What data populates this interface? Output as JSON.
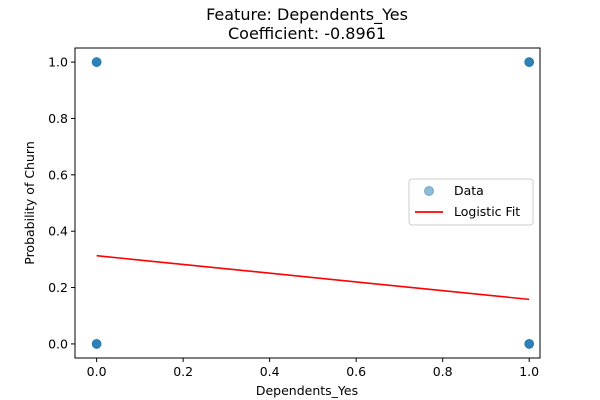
{
  "chart_data": {
    "type": "scatter",
    "title": "Feature: Dependents_Yes",
    "subtitle": "Coefficient: -0.8961",
    "xlabel": "Dependents_Yes",
    "ylabel": "Probability of Churn",
    "xlim": [
      -0.05,
      1.025
    ],
    "ylim": [
      -0.05,
      1.05
    ],
    "xticks": [
      0.0,
      0.2,
      0.4,
      0.6,
      0.8,
      1.0
    ],
    "xtick_labels": [
      "0.0",
      "0.2",
      "0.4",
      "0.6",
      "0.8",
      "1.0"
    ],
    "yticks": [
      0.0,
      0.2,
      0.4,
      0.6,
      0.8,
      1.0
    ],
    "ytick_labels": [
      "0.0",
      "0.2",
      "0.4",
      "0.6",
      "0.8",
      "1.0"
    ],
    "grid": false,
    "legend_position": "center-right",
    "series": [
      {
        "name": "Data",
        "kind": "scatter",
        "color": "#1f77b4",
        "alpha": 0.5,
        "points": [
          [
            0,
            0
          ],
          [
            0,
            1
          ],
          [
            1,
            0
          ],
          [
            1,
            1
          ]
        ]
      },
      {
        "name": "Logistic Fit",
        "kind": "line",
        "color": "#ff0000",
        "x": [
          0,
          1
        ],
        "y": [
          0.313,
          0.158
        ]
      }
    ]
  }
}
